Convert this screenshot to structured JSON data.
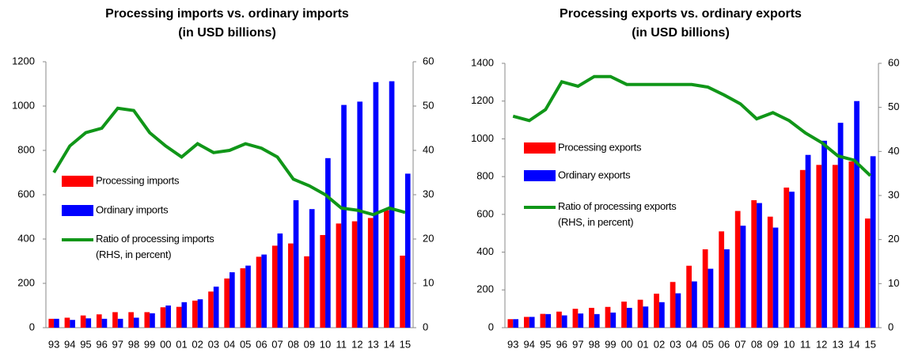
{
  "chart_data": [
    {
      "type": "bar",
      "title": "Processing imports vs. ordinary imports",
      "subtitle": "(in USD billions)",
      "categories": [
        "93",
        "94",
        "95",
        "96",
        "97",
        "98",
        "99",
        "00",
        "01",
        "02",
        "03",
        "04",
        "05",
        "06",
        "07",
        "08",
        "09",
        "10",
        "11",
        "12",
        "13",
        "14",
        "15"
      ],
      "series": [
        {
          "name": "Processing imports",
          "color": "#ff0000",
          "type": "bar",
          "values": [
            40,
            45,
            55,
            60,
            70,
            70,
            70,
            92,
            94,
            122,
            163,
            222,
            268,
            320,
            370,
            380,
            322,
            418,
            470,
            480,
            495,
            530,
            325
          ]
        },
        {
          "name": "Ordinary imports",
          "color": "#0000ff",
          "type": "bar",
          "values": [
            40,
            35,
            42,
            40,
            40,
            45,
            65,
            100,
            115,
            128,
            185,
            250,
            280,
            330,
            425,
            575,
            535,
            765,
            1005,
            1020,
            1108,
            1112,
            695
          ]
        },
        {
          "name": "Ratio of processing imports (RHS, in percent)",
          "color": "#109618",
          "type": "line",
          "axis": "y2",
          "values": [
            35,
            41,
            44,
            45,
            49.5,
            49,
            44,
            41,
            38.5,
            41.5,
            39.5,
            40,
            41.5,
            40.5,
            38.5,
            33.5,
            32,
            30,
            27,
            26.5,
            25.5,
            27,
            26
          ]
        }
      ],
      "ylim": [
        0,
        1200
      ],
      "yticks": [
        0,
        200,
        400,
        600,
        800,
        1000,
        1200
      ],
      "y2lim": [
        0,
        60
      ],
      "y2ticks": [
        0,
        10,
        20,
        30,
        40,
        50,
        60
      ]
    },
    {
      "type": "bar",
      "title": "Processing exports vs. ordinary exports",
      "subtitle": "(in USD billions)",
      "categories": [
        "93",
        "94",
        "95",
        "96",
        "97",
        "98",
        "99",
        "00",
        "01",
        "02",
        "03",
        "04",
        "05",
        "06",
        "07",
        "08",
        "09",
        "10",
        "11",
        "12",
        "13",
        "14",
        "15"
      ],
      "series": [
        {
          "name": "Processing exports",
          "color": "#ff0000",
          "type": "bar",
          "values": [
            45,
            57,
            73,
            85,
            100,
            105,
            110,
            138,
            148,
            180,
            242,
            328,
            415,
            510,
            618,
            675,
            588,
            742,
            835,
            862,
            862,
            880,
            578
          ]
        },
        {
          "name": "Ordinary exports",
          "color": "#0000ff",
          "type": "bar",
          "values": [
            45,
            57,
            72,
            65,
            75,
            72,
            80,
            105,
            112,
            135,
            182,
            245,
            312,
            415,
            540,
            660,
            530,
            720,
            915,
            990,
            1085,
            1200,
            908
          ]
        },
        {
          "name": "Ratio of processing exports (RHS, in percent)",
          "color": "#109618",
          "type": "line",
          "axis": "y2",
          "values": [
            48,
            47,
            49.5,
            55.8,
            54.8,
            57,
            57,
            55.2,
            55.2,
            55.2,
            55.2,
            55.2,
            54.6,
            52.8,
            50.8,
            47.4,
            48.8,
            47,
            44.2,
            42,
            39,
            38,
            34.5
          ]
        }
      ],
      "ylim": [
        0,
        1400
      ],
      "yticks": [
        0,
        200,
        400,
        600,
        800,
        1000,
        1200,
        1400
      ],
      "y2lim": [
        0,
        60
      ],
      "y2ticks": [
        0,
        10,
        20,
        30,
        40,
        50,
        60
      ]
    }
  ]
}
